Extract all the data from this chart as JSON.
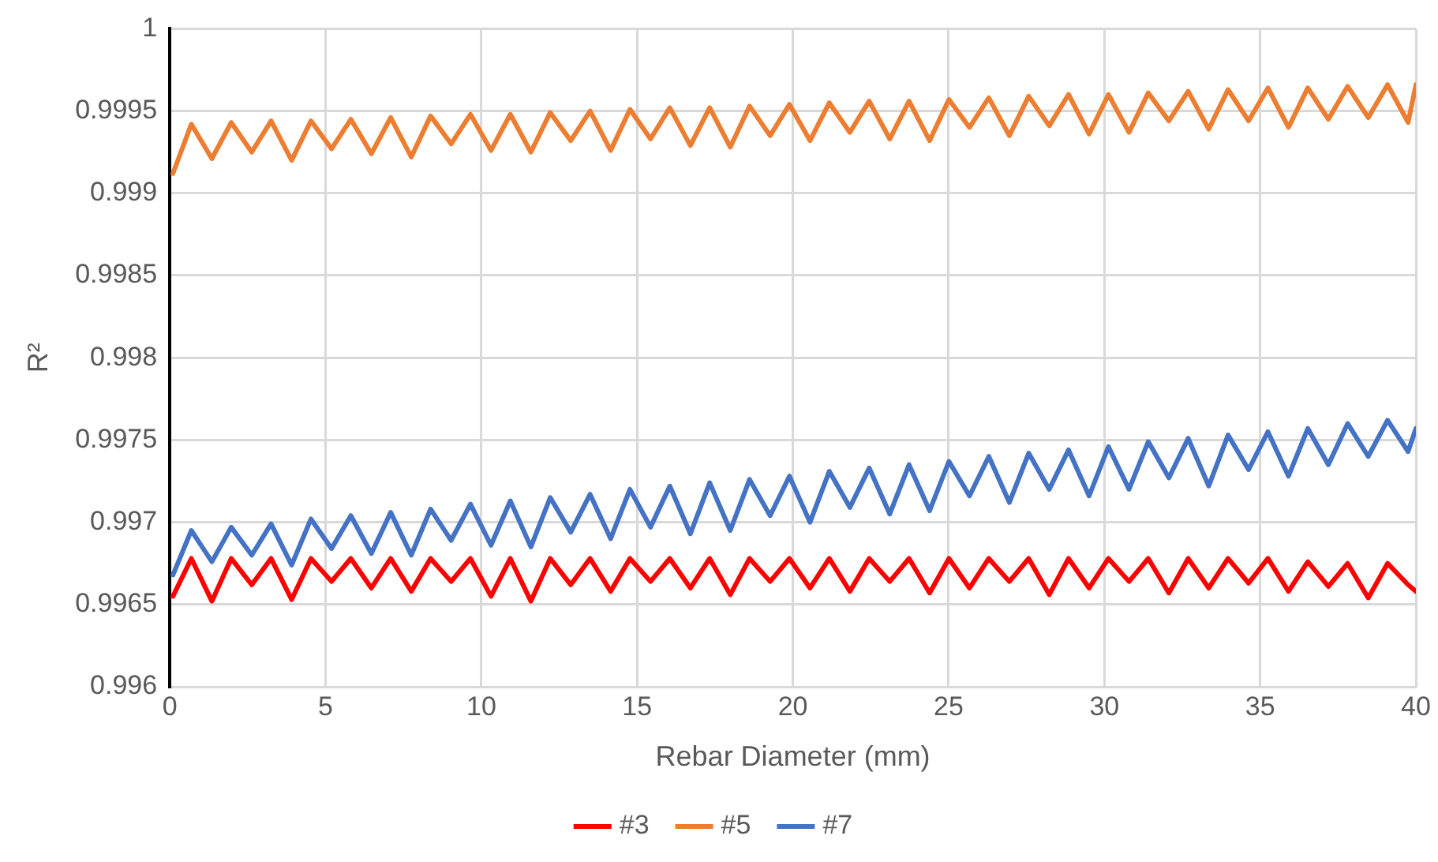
{
  "chart_data": {
    "type": "line",
    "xlabel": "Rebar Diameter (mm)",
    "ylabel": "R²",
    "x": [
      0.1,
      0.69,
      1.35,
      1.97,
      2.63,
      3.25,
      3.91,
      4.53,
      5.19,
      5.81,
      6.47,
      7.09,
      7.75,
      8.37,
      9.03,
      9.65,
      10.31,
      10.93,
      11.59,
      12.21,
      12.87,
      13.49,
      14.15,
      14.77,
      15.43,
      16.05,
      16.71,
      17.33,
      17.99,
      18.61,
      19.27,
      19.89,
      20.55,
      21.17,
      21.83,
      22.45,
      23.11,
      23.73,
      24.39,
      25.01,
      25.67,
      26.29,
      26.95,
      27.57,
      28.23,
      28.85,
      29.51,
      30.13,
      30.79,
      31.41,
      32.07,
      32.69,
      33.35,
      33.97,
      34.63,
      35.25,
      35.91,
      36.53,
      37.19,
      37.81,
      38.47,
      39.09,
      39.75,
      40
    ],
    "series": [
      {
        "name": "#3",
        "color": "#ff0000",
        "values": [
          0.99655,
          0.99678,
          0.99652,
          0.99678,
          0.99662,
          0.99678,
          0.99653,
          0.99678,
          0.99664,
          0.99678,
          0.9966,
          0.99678,
          0.99658,
          0.99678,
          0.99664,
          0.99678,
          0.99655,
          0.99678,
          0.99652,
          0.99678,
          0.99662,
          0.99678,
          0.99658,
          0.99678,
          0.99664,
          0.99678,
          0.9966,
          0.99678,
          0.99656,
          0.99678,
          0.99664,
          0.99678,
          0.9966,
          0.99678,
          0.99658,
          0.99678,
          0.99664,
          0.99678,
          0.99657,
          0.99678,
          0.9966,
          0.99678,
          0.99664,
          0.99678,
          0.99656,
          0.99678,
          0.9966,
          0.99678,
          0.99664,
          0.99678,
          0.99657,
          0.99678,
          0.9966,
          0.99678,
          0.99663,
          0.99678,
          0.99658,
          0.99676,
          0.99661,
          0.99675,
          0.99654,
          0.99675,
          0.99662,
          0.99658
        ]
      },
      {
        "name": "#5",
        "color": "#ed7d31",
        "values": [
          0.99912,
          0.99942,
          0.99921,
          0.99943,
          0.99925,
          0.99944,
          0.9992,
          0.99944,
          0.99927,
          0.99945,
          0.99924,
          0.99946,
          0.99922,
          0.99947,
          0.9993,
          0.99948,
          0.99926,
          0.99948,
          0.99925,
          0.99949,
          0.99932,
          0.9995,
          0.99926,
          0.99951,
          0.99933,
          0.99952,
          0.99929,
          0.99952,
          0.99928,
          0.99953,
          0.99935,
          0.99954,
          0.99932,
          0.99955,
          0.99937,
          0.99956,
          0.99933,
          0.99956,
          0.99932,
          0.99957,
          0.9994,
          0.99958,
          0.99935,
          0.99959,
          0.99941,
          0.9996,
          0.99936,
          0.9996,
          0.99937,
          0.99961,
          0.99944,
          0.99962,
          0.99939,
          0.99963,
          0.99944,
          0.99964,
          0.9994,
          0.99964,
          0.99945,
          0.99965,
          0.99946,
          0.99966,
          0.99943,
          0.99966
        ]
      },
      {
        "name": "#7",
        "color": "#4472c4",
        "values": [
          0.99668,
          0.99695,
          0.99676,
          0.99697,
          0.9968,
          0.99699,
          0.99674,
          0.99702,
          0.99684,
          0.99704,
          0.99681,
          0.99706,
          0.9968,
          0.99708,
          0.99689,
          0.99711,
          0.99686,
          0.99713,
          0.99685,
          0.99715,
          0.99694,
          0.99717,
          0.9969,
          0.9972,
          0.99697,
          0.99722,
          0.99693,
          0.99724,
          0.99695,
          0.99726,
          0.99704,
          0.99728,
          0.997,
          0.99731,
          0.99709,
          0.99733,
          0.99705,
          0.99735,
          0.99707,
          0.99737,
          0.99716,
          0.9974,
          0.99712,
          0.99742,
          0.9972,
          0.99744,
          0.99716,
          0.99746,
          0.9972,
          0.99749,
          0.99727,
          0.99751,
          0.99722,
          0.99753,
          0.99732,
          0.99755,
          0.99728,
          0.99757,
          0.99735,
          0.9976,
          0.9974,
          0.99762,
          0.99743,
          0.99757
        ]
      }
    ],
    "xlim": [
      0,
      40
    ],
    "xticks": [
      0,
      5,
      10,
      15,
      20,
      25,
      30,
      35,
      40
    ],
    "ylim": [
      0.996,
      1
    ],
    "yticks": [
      0.996,
      0.9965,
      0.997,
      0.9975,
      0.998,
      0.9985,
      0.999,
      0.9995,
      1
    ],
    "grid": true,
    "legend": "bottom",
    "marker": "none",
    "line_style": "solid"
  }
}
